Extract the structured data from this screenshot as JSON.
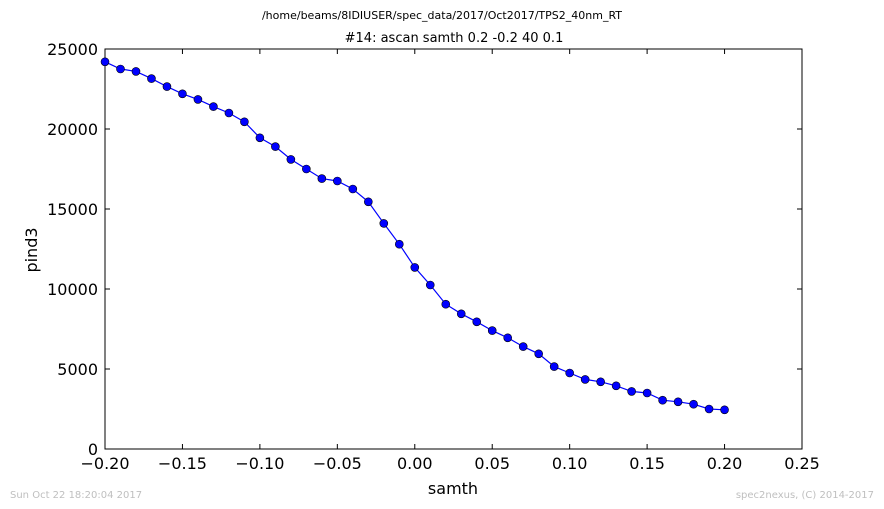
{
  "suptitle": "/home/beams/8IDIUSER/spec_data/2017/Oct2017/TPS2_40nm_RT",
  "timestamp": "Sun Oct 22 18:20:04 2017",
  "credit": "spec2nexus, (C) 2014-2017",
  "colors": {
    "series": "#0000ff",
    "axis": "#000000",
    "footer": "#bfbfbf"
  },
  "chart_data": {
    "type": "line",
    "title": "#14: ascan  samth 0.2 -0.2  40 0.1",
    "xlabel": "samth",
    "ylabel": "pind3",
    "xlim": [
      -0.2,
      0.25
    ],
    "ylim": [
      0,
      25000
    ],
    "grid": false,
    "marker": "circle",
    "x_ticks": [
      -0.2,
      -0.15,
      -0.1,
      -0.05,
      0.0,
      0.05,
      0.1,
      0.15,
      0.2,
      0.25
    ],
    "x_tick_labels": [
      "−0.20",
      "−0.15",
      "−0.10",
      "−0.05",
      "0.00",
      "0.05",
      "0.10",
      "0.15",
      "0.20",
      "0.25"
    ],
    "y_ticks": [
      0,
      5000,
      10000,
      15000,
      20000,
      25000
    ],
    "y_tick_labels": [
      "0",
      "5000",
      "10000",
      "15000",
      "20000",
      "25000"
    ],
    "series": [
      {
        "x": [
          -0.2,
          -0.19,
          -0.18,
          -0.17,
          -0.16,
          -0.15,
          -0.14,
          -0.13,
          -0.12,
          -0.11,
          -0.1,
          -0.09,
          -0.08,
          -0.07,
          -0.06,
          -0.05,
          -0.04,
          -0.03,
          -0.02,
          -0.01,
          0.0,
          0.01,
          0.02,
          0.03,
          0.04,
          0.05,
          0.06,
          0.07,
          0.08,
          0.09,
          0.1,
          0.11,
          0.12,
          0.13,
          0.14,
          0.15,
          0.16,
          0.17,
          0.18,
          0.19,
          0.2
        ],
        "y": [
          24200,
          23750,
          23600,
          23150,
          22650,
          22200,
          21850,
          21400,
          21000,
          20450,
          19450,
          18900,
          18100,
          17500,
          16900,
          16750,
          16250,
          15450,
          14100,
          12800,
          11350,
          10250,
          9050,
          8450,
          7950,
          7400,
          6950,
          6400,
          5950,
          5150,
          4750,
          4350,
          4200,
          3950,
          3600,
          3500,
          3050,
          2950,
          2800,
          2500,
          2450
        ]
      }
    ]
  }
}
